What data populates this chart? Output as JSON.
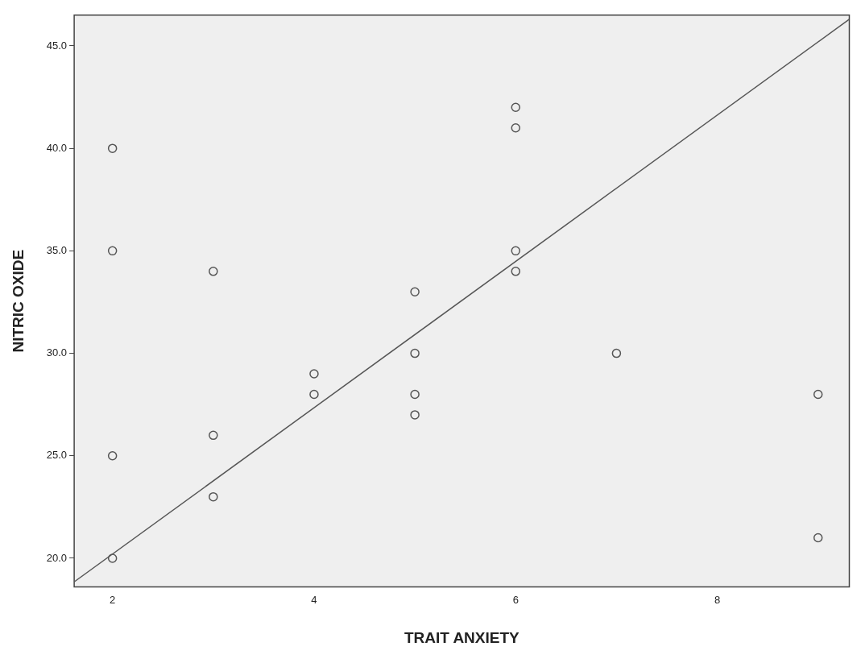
{
  "chart_data": {
    "type": "scatter",
    "xlabel": "TRAIT ANXIETY",
    "ylabel": "NITRIC OXIDE",
    "xlim": [
      1.62,
      9.31
    ],
    "ylim": [
      18.6,
      46.5
    ],
    "xticks": [
      2,
      4,
      6,
      8
    ],
    "yticks": [
      {
        "value": 20,
        "label": "20.0"
      },
      {
        "value": 25,
        "label": "25.0"
      },
      {
        "value": 30,
        "label": "30.0"
      },
      {
        "value": 35,
        "label": "35.0"
      },
      {
        "value": 40,
        "label": "40.0"
      },
      {
        "value": 45,
        "label": "45.0"
      }
    ],
    "grid": false,
    "legend": false,
    "series": [
      {
        "marker": "circle",
        "color": "#555555",
        "x": [
          2,
          2,
          2,
          2,
          3,
          3,
          3,
          4,
          4,
          5,
          5,
          5,
          5,
          6,
          6,
          6,
          6,
          7,
          9,
          9
        ],
        "values": [
          40,
          35,
          25,
          20,
          34,
          26,
          23,
          29,
          28,
          33,
          30,
          28,
          27,
          42,
          41,
          35,
          34,
          30,
          28,
          21
        ]
      },
      {
        "type": "line",
        "marker": "none",
        "color": "#555555",
        "x": [
          1.62,
          9.31
        ],
        "values": [
          18.85,
          46.3
        ]
      }
    ]
  }
}
